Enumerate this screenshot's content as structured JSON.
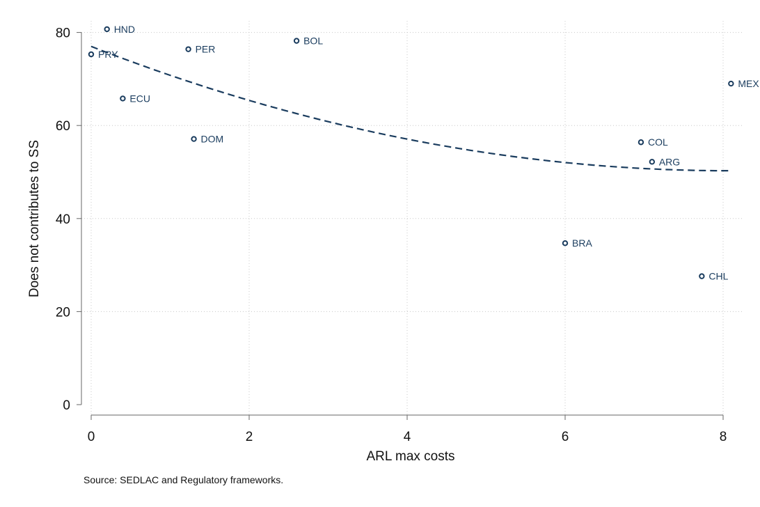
{
  "chart_data": {
    "type": "scatter",
    "xlabel": "ARL max costs",
    "ylabel": "Does not contributes to SS",
    "xlim": [
      0,
      8.1
    ],
    "ylim": [
      0,
      80
    ],
    "xticks": [
      0,
      2,
      4,
      6,
      8
    ],
    "yticks": [
      0,
      20,
      40,
      60,
      80
    ],
    "grid": true,
    "points": [
      {
        "label": "HND",
        "x": 0.2,
        "y": 80.7
      },
      {
        "label": "PRY",
        "x": 0.0,
        "y": 75.3
      },
      {
        "label": "PER",
        "x": 1.23,
        "y": 76.4
      },
      {
        "label": "BOL",
        "x": 2.6,
        "y": 78.2
      },
      {
        "label": "ECU",
        "x": 0.4,
        "y": 65.8
      },
      {
        "label": "DOM",
        "x": 1.3,
        "y": 57.1
      },
      {
        "label": "MEX",
        "x": 8.1,
        "y": 69.0
      },
      {
        "label": "COL",
        "x": 6.96,
        "y": 56.4
      },
      {
        "label": "ARG",
        "x": 7.1,
        "y": 52.2
      },
      {
        "label": "BRA",
        "x": 6.0,
        "y": 34.7
      },
      {
        "label": "CHL",
        "x": 7.73,
        "y": 27.6
      }
    ],
    "fit_line": {
      "style": "dashed",
      "kind": "quadratic",
      "coefficients": [
        77.0,
        -6.62,
        0.41
      ]
    },
    "colors": {
      "marker": "#1a3c5e",
      "fit": "#1a3c5e",
      "grid": "#c8c8c8"
    }
  },
  "source": "Source: SEDLAC and Regulatory frameworks."
}
